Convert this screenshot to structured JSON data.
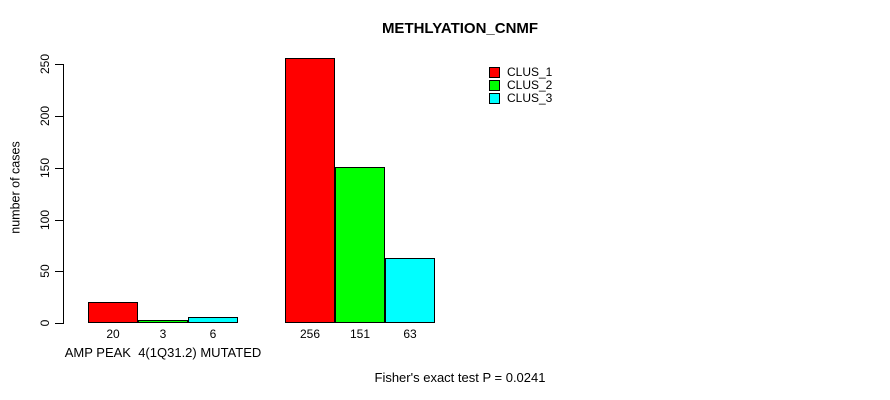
{
  "chart_data": {
    "type": "bar",
    "title": "METHLYATION_CNMF",
    "ylabel": "number of cases",
    "xlabel": "",
    "ylim": [
      0,
      250
    ],
    "yticks": [
      0,
      50,
      100,
      150,
      200,
      250
    ],
    "grid": false,
    "legend_position": "top-right",
    "background_color": "#ffffff",
    "axis_color": "#000000",
    "series": [
      {
        "name": "CLUS_1",
        "color": "#ff0000"
      },
      {
        "name": "CLUS_2",
        "color": "#00ff00"
      },
      {
        "name": "CLUS_3",
        "color": "#00ffff"
      }
    ],
    "groups": [
      {
        "label": "AMP PEAK  4(1Q31.2) MUTATED",
        "values": [
          20,
          3,
          6
        ]
      },
      {
        "label": "",
        "values": [
          256,
          151,
          63
        ]
      }
    ],
    "bar_value_labels_shown": true,
    "footer": "Fisher's exact test P = 0.0241"
  }
}
